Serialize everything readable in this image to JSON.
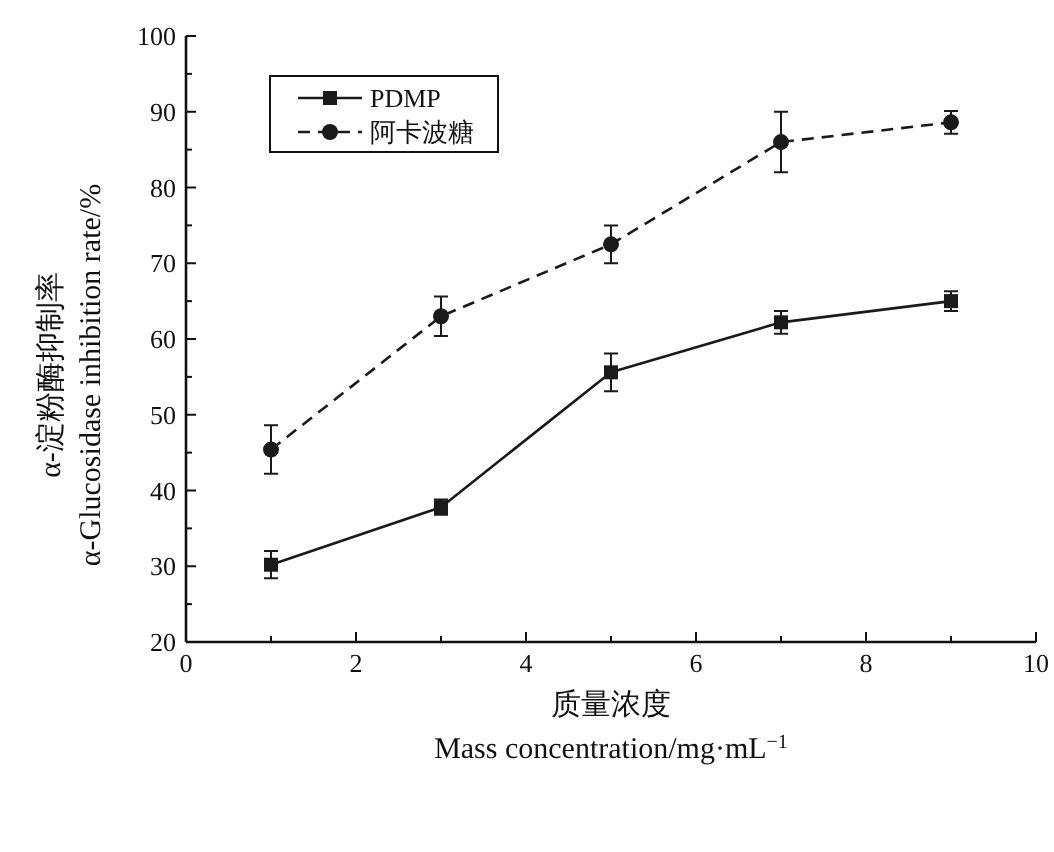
{
  "chart_data": {
    "type": "line",
    "xlabel": "质量浓度\nMass concentration/mg·mL$^{−1}$",
    "ylabel": "α-淀粉酶抑制率\nα-Glucosidase inhibition rate/%",
    "x": [
      1,
      3,
      5,
      7,
      9
    ],
    "series": [
      {
        "name": "PDMP",
        "color": "#1a1a1a",
        "marker": "square",
        "line_style": "solid",
        "values": [
          30.2,
          37.8,
          55.6,
          62.2,
          65.0
        ],
        "errors": [
          1.8,
          1,
          2.5,
          1.5,
          1.3
        ]
      },
      {
        "name": "阿卡波糖",
        "color": "#1a1a1a",
        "marker": "circle",
        "line_style": "dashed",
        "values": [
          45.4,
          63.0,
          72.5,
          86.0,
          88.6
        ],
        "errors": [
          3.2,
          2.6,
          2.5,
          4,
          1.5
        ]
      }
    ],
    "xlim": [
      0,
      10
    ],
    "xticks": [
      0,
      2,
      4,
      6,
      8,
      10
    ],
    "ylim": [
      20,
      100
    ],
    "yticks": [
      20,
      30,
      40,
      50,
      60,
      70,
      80,
      90,
      100
    ],
    "grid": false,
    "legend": "top left"
  }
}
